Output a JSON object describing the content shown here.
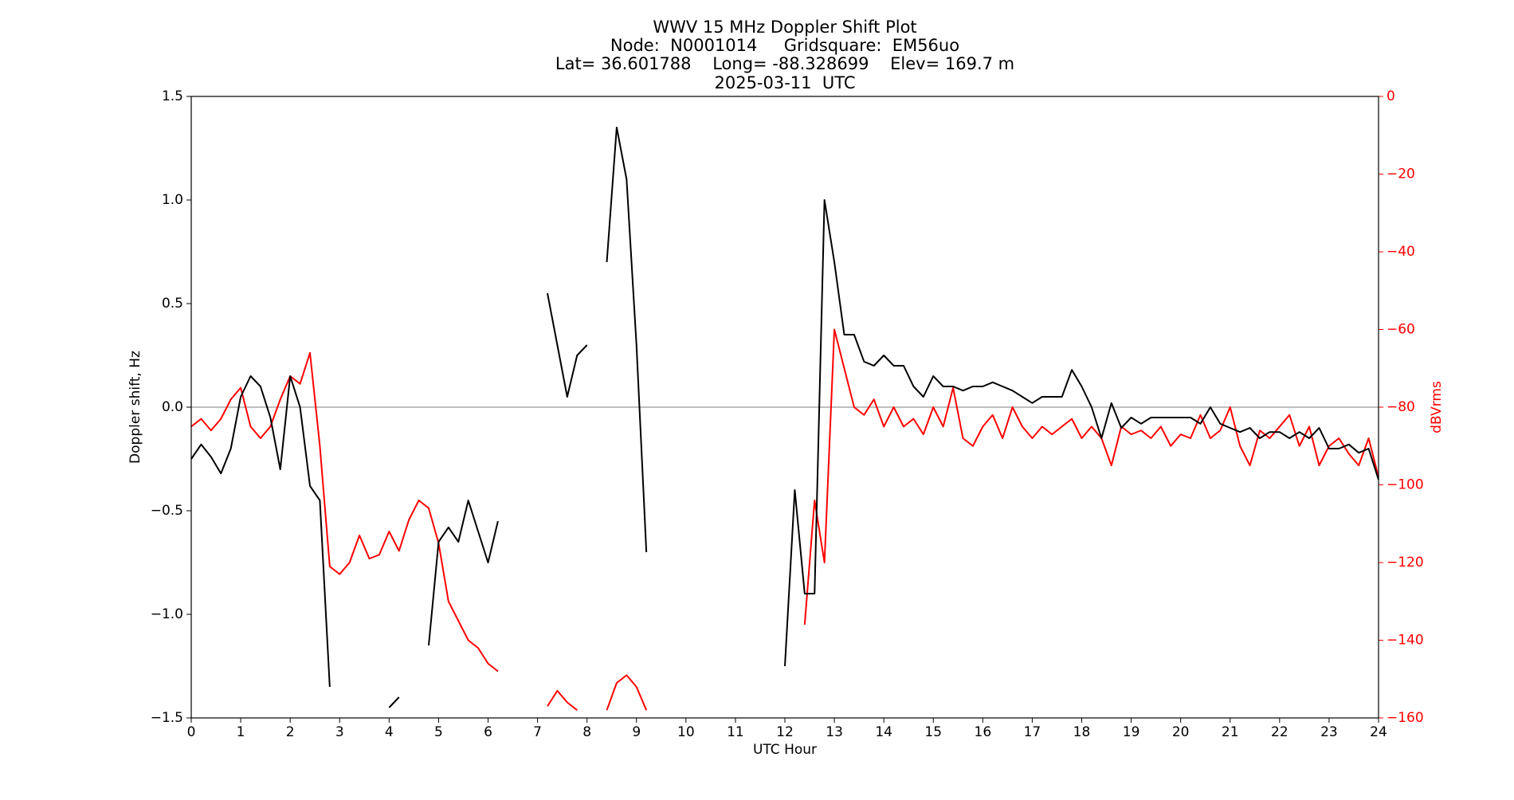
{
  "chart_data": {
    "type": "line",
    "title": [
      "WWV 15 MHz Doppler Shift Plot",
      "Node:  N0001014     Gridsquare:  EM56uo",
      "Lat= 36.601788    Long= -88.328699    Elev= 169.7 m",
      "2025-03-11  UTC"
    ],
    "xlabel": "UTC Hour",
    "ylabel": "Doppler shift, Hz",
    "y2label": "dBVrms",
    "x": [
      0,
      0.2,
      0.4,
      0.6,
      0.8,
      1,
      1.2,
      1.4,
      1.6,
      1.8,
      2,
      2.2,
      2.4,
      2.6,
      2.8,
      3,
      3.2,
      3.4,
      3.6,
      3.8,
      4,
      4.2,
      4.4,
      4.6,
      4.8,
      5,
      5.2,
      5.4,
      5.6,
      5.8,
      6,
      6.2,
      6.4,
      6.6,
      6.8,
      7,
      7.2,
      7.4,
      7.6,
      7.8,
      8,
      8.2,
      8.4,
      8.6,
      8.8,
      9,
      9.2,
      9.4,
      9.6,
      9.8,
      10,
      10.2,
      10.4,
      10.6,
      10.8,
      11,
      11.2,
      11.4,
      11.6,
      11.8,
      12,
      12.2,
      12.4,
      12.6,
      12.8,
      13,
      13.2,
      13.4,
      13.6,
      13.8,
      14,
      14.2,
      14.4,
      14.6,
      14.8,
      15,
      15.2,
      15.4,
      15.6,
      15.8,
      16,
      16.2,
      16.4,
      16.6,
      16.8,
      17,
      17.2,
      17.4,
      17.6,
      17.8,
      18,
      18.2,
      18.4,
      18.6,
      18.8,
      19,
      19.2,
      19.4,
      19.6,
      19.8,
      20,
      20.2,
      20.4,
      20.6,
      20.8,
      21,
      21.2,
      21.4,
      21.6,
      21.8,
      22,
      22.2,
      22.4,
      22.6,
      22.8,
      23,
      23.2,
      23.4,
      23.6,
      23.8,
      24
    ],
    "series": [
      {
        "name": "Doppler shift",
        "color": "#000000",
        "values": [
          -0.25,
          -0.18,
          -0.24,
          -0.32,
          -0.2,
          0.05,
          0.15,
          0.1,
          -0.05,
          -0.3,
          0.15,
          0.0,
          -0.38,
          -0.45,
          -1.35,
          null,
          null,
          null,
          null,
          null,
          -1.45,
          -1.4,
          null,
          null,
          -1.15,
          -0.65,
          -0.58,
          -0.65,
          -0.45,
          -0.6,
          -0.75,
          -0.55,
          null,
          null,
          null,
          null,
          0.55,
          0.3,
          0.05,
          0.25,
          0.3,
          null,
          0.7,
          1.35,
          1.1,
          0.3,
          -0.7,
          null,
          null,
          null,
          null,
          null,
          null,
          null,
          null,
          null,
          null,
          null,
          null,
          null,
          -1.25,
          -0.4,
          -0.9,
          -0.9,
          1.0,
          0.7,
          0.35,
          0.35,
          0.22,
          0.2,
          0.25,
          0.2,
          0.2,
          0.1,
          0.05,
          0.15,
          0.1,
          0.1,
          0.08,
          0.1,
          0.1,
          0.12,
          0.1,
          0.08,
          0.05,
          0.02,
          0.05,
          0.05,
          0.05,
          0.18,
          0.1,
          0.0,
          -0.15,
          0.02,
          -0.1,
          -0.05,
          -0.08,
          -0.05,
          -0.05,
          -0.05,
          -0.05,
          -0.05,
          -0.08,
          0.0,
          -0.08,
          -0.1,
          -0.12,
          -0.1,
          -0.15,
          -0.12,
          -0.12,
          -0.15,
          -0.12,
          -0.15,
          -0.1,
          -0.2,
          -0.2,
          -0.18,
          -0.22,
          -0.2,
          -0.35
        ]
      },
      {
        "name": "dBVrms",
        "color": "#ff0000",
        "axis": "y2",
        "values": [
          -85,
          -83,
          -86,
          -83,
          -78,
          -75,
          -85,
          -88,
          -85,
          -78,
          -72,
          -74,
          -66,
          -90,
          -121,
          -123,
          -120,
          -113,
          -119,
          -118,
          -112,
          -117,
          -109,
          -104,
          -106,
          -115,
          -130,
          -135,
          -140,
          -142,
          -146,
          -148,
          null,
          null,
          null,
          null,
          -157,
          -153,
          -156,
          -158,
          null,
          null,
          -158,
          -151,
          -149,
          -152,
          -158,
          null,
          null,
          null,
          null,
          null,
          null,
          null,
          null,
          null,
          null,
          null,
          null,
          null,
          null,
          null,
          -136,
          -104,
          -120,
          -60,
          -70,
          -80,
          -82,
          -78,
          -85,
          -80,
          -85,
          -83,
          -87,
          -80,
          -85,
          -75,
          -88,
          -90,
          -85,
          -82,
          -88,
          -80,
          -85,
          -88,
          -85,
          -87,
          -85,
          -83,
          -88,
          -85,
          -88,
          -95,
          -85,
          -87,
          -86,
          -88,
          -85,
          -90,
          -87,
          -88,
          -82,
          -88,
          -86,
          -80,
          -90,
          -95,
          -86,
          -88,
          -85,
          -82,
          -90,
          -85,
          -95,
          -90,
          -88,
          -92,
          -95,
          -88,
          -98
        ]
      }
    ],
    "xlim": [
      0,
      24
    ],
    "xticks": [
      0,
      1,
      2,
      3,
      4,
      5,
      6,
      7,
      8,
      9,
      10,
      11,
      12,
      13,
      14,
      15,
      16,
      17,
      18,
      19,
      20,
      21,
      22,
      23,
      24
    ],
    "ylim": [
      -1.5,
      1.5
    ],
    "yticks": [
      {
        "value": -1.5,
        "label": "−1.5"
      },
      {
        "value": -1.0,
        "label": "−1.0"
      },
      {
        "value": -0.5,
        "label": "−0.5"
      },
      {
        "value": 0,
        "label": "0.0"
      },
      {
        "value": 0.5,
        "label": "0.5"
      },
      {
        "value": 1.0,
        "label": "1.0"
      },
      {
        "value": 1.5,
        "label": "1.5"
      }
    ],
    "y2lim": [
      -160,
      0
    ],
    "y2ticks": [
      {
        "value": -160,
        "label": "−160"
      },
      {
        "value": -140,
        "label": "−140"
      },
      {
        "value": -120,
        "label": "−120"
      },
      {
        "value": -100,
        "label": "−100"
      },
      {
        "value": -80,
        "label": "−80"
      },
      {
        "value": -60,
        "label": "−60"
      },
      {
        "value": -40,
        "label": "−40"
      },
      {
        "value": -20,
        "label": "−20"
      },
      0
    ],
    "y2color": "#ff0000",
    "hline": 0,
    "hline_color": "#999999"
  }
}
